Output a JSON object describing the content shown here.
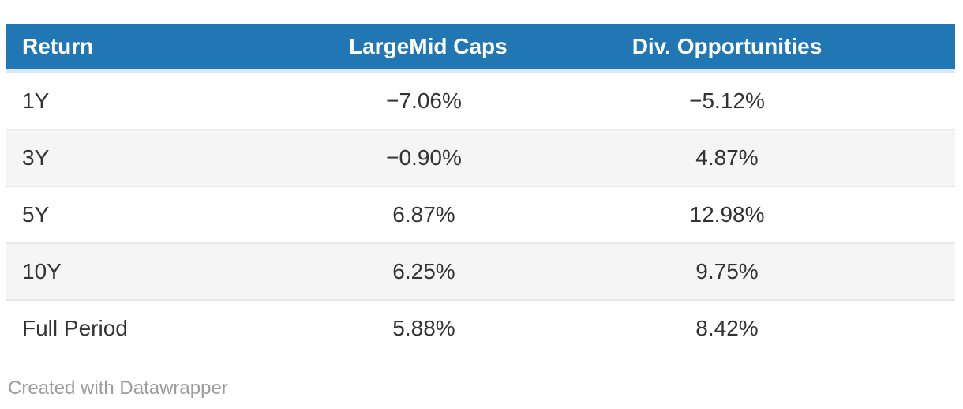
{
  "header": {
    "columns": [
      "Return",
      "LargeMid Caps",
      "Div. Opportunities"
    ]
  },
  "table": {
    "rows": [
      [
        "1Y",
        "−7.06%",
        "−5.12%"
      ],
      [
        "3Y",
        "−0.90%",
        "4.87%"
      ],
      [
        "5Y",
        "6.87%",
        "12.98%"
      ],
      [
        "10Y",
        "6.25%",
        "9.75%"
      ],
      [
        "Full Period",
        "5.88%",
        "8.42%"
      ]
    ]
  },
  "footer": {
    "attribution": "Created with Datawrapper"
  },
  "colors": {
    "header_bg": "#2077b4",
    "header_text": "#ffffff",
    "header_underline": "#d9e8f8",
    "row_alt_bg": "#f5f5f5",
    "row_border": "#e7e7e7",
    "body_text": "#333333",
    "footer_text": "#9c9c9c"
  },
  "chart_data": {
    "type": "table",
    "title": "",
    "columns": [
      "Return",
      "LargeMid Caps",
      "Div. Opportunities"
    ],
    "categories": [
      "1Y",
      "3Y",
      "5Y",
      "10Y",
      "Full Period"
    ],
    "series": [
      {
        "name": "LargeMid Caps",
        "unit": "%",
        "values": [
          -7.06,
          -0.9,
          6.87,
          6.25,
          5.88
        ]
      },
      {
        "name": "Div. Opportunities",
        "unit": "%",
        "values": [
          -5.12,
          4.87,
          12.98,
          9.75,
          8.42
        ]
      }
    ],
    "layout": {
      "header_background": "#2077b4",
      "zebra_striping": true,
      "value_alignment": "center"
    },
    "attribution": "Created with Datawrapper"
  }
}
